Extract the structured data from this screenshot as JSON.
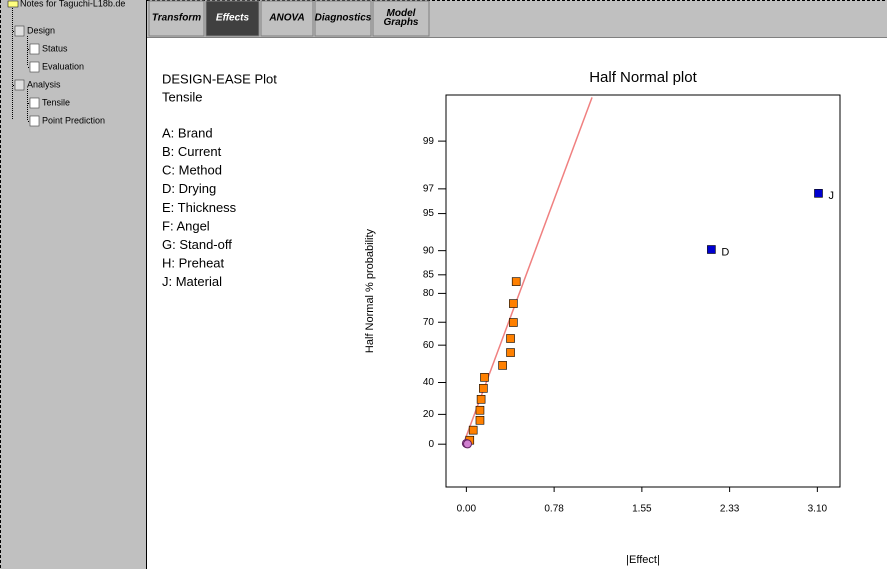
{
  "window": {
    "title": "Notes for Taguchi-L18b.de"
  },
  "tree": [
    {
      "label": "Design",
      "level": 0
    },
    {
      "label": "Status",
      "level": 1
    },
    {
      "label": "Evaluation",
      "level": 1
    },
    {
      "label": "Analysis",
      "level": 0
    },
    {
      "label": "Tensile",
      "level": 1,
      "selected": true
    },
    {
      "label": "Point Prediction",
      "level": 1
    }
  ],
  "tabs": [
    {
      "label_lines": [
        "Transform"
      ]
    },
    {
      "label_lines": [
        "Effects"
      ],
      "active": true
    },
    {
      "label_lines": [
        "ANOVA"
      ]
    },
    {
      "label_lines": [
        "Diagnostics"
      ]
    },
    {
      "label_lines": [
        "Model",
        "Graphs"
      ]
    }
  ],
  "info": {
    "heading": "DESIGN-EASE Plot",
    "response": "Tensile",
    "factors": [
      "A: Brand",
      "B: Current",
      "C: Method",
      "D: Drying",
      "E: Thickness",
      "F: Angel",
      "G: Stand-off",
      "H: Preheat",
      "J: Material"
    ]
  },
  "chart_data": {
    "type": "scatter",
    "title": "Half Normal plot",
    "x_label": "|Effect|",
    "y_label": "Half Normal % probability",
    "yscale": "half-normal",
    "xlim": [
      -0.18,
      3.3
    ],
    "ylim": [
      -28.4,
      99.7
    ],
    "xticks": [
      {
        "value": 0,
        "label": "0.00"
      },
      {
        "value": 0.775,
        "label": "0.78"
      },
      {
        "value": 1.55,
        "label": "1.55"
      },
      {
        "value": 2.325,
        "label": "2.33"
      },
      {
        "value": 3.1,
        "label": "3.10"
      }
    ],
    "yticks": [
      0,
      20,
      40,
      60,
      70,
      80,
      85,
      90,
      95,
      97,
      99
    ],
    "series": [
      {
        "marker": "square",
        "color": "#ff8000",
        "x": [
          0.44,
          0.415,
          0.415,
          0.39,
          0.39,
          0.32,
          0.16,
          0.15,
          0.13,
          0.12,
          0.12,
          0.06,
          0.03
        ],
        "values": [
          83.3,
          76.8,
          69.9,
          63.1,
          56.4,
          49.7,
          43.0,
          36.5,
          29.7,
          22.7,
          16.1,
          9.5,
          2.7
        ]
      },
      {
        "marker": "circle",
        "color": "#d080d0",
        "x": [
          0,
          0.01
        ],
        "values": [
          0.5,
          0.2
        ]
      },
      {
        "marker": "square",
        "color": "#0000d0",
        "x": [
          2.164,
          3.11
        ],
        "values": [
          90.2,
          96.7
        ],
        "labels": [
          "D",
          "J"
        ]
      }
    ],
    "fit_line": {
      "color": "#f08080",
      "x": [
        -0.03,
        1.11
      ],
      "values": [
        -0.6,
        99.68
      ]
    }
  }
}
